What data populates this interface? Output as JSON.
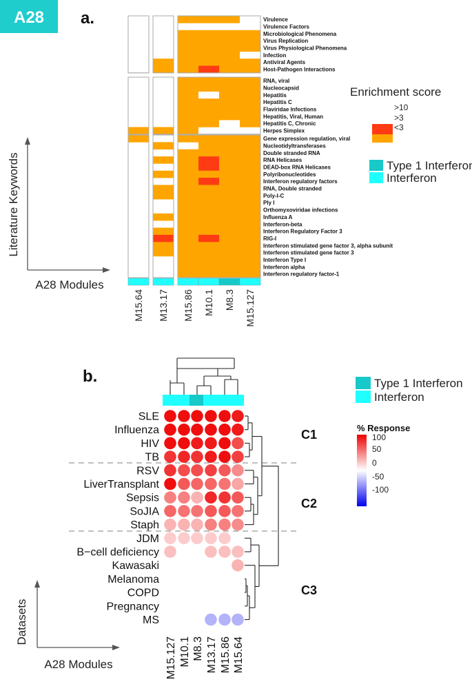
{
  "badge": "A28",
  "colors": {
    "badge": "#1fcdcd",
    "orange": "#ffa500",
    "red": "#ff3b14",
    "type1_ifn": "#17c9c9",
    "ifn": "#20ffff",
    "dot_pos": "#ee0000",
    "dot_neg": "#0000ee"
  },
  "panel_a": {
    "label": "a.",
    "y_title": "Literature Keywords",
    "x_title": "A28 Modules",
    "legend": {
      "title": "Enrichment score",
      "levels": [
        ">10",
        ">3",
        "<3"
      ],
      "module_types": [
        "Type 1 Interferon",
        "Interferon"
      ]
    },
    "chart_data": {
      "type": "heatmap",
      "modules": [
        "M15.64",
        "M13.17",
        "M15.86",
        "M10.1",
        "M8.3",
        "M15.127"
      ],
      "module_type": [
        "Interferon",
        "Interferon",
        "Interferon",
        "Interferon",
        "Type 1 Interferon",
        "Interferon"
      ],
      "score_levels": {
        "0": "<3",
        "1": ">3",
        "2": ">10"
      },
      "groups": [
        {
          "keywords": [
            "Virulence",
            "Virulence Factors",
            "Microbiological Phenomena",
            "Virus Replication",
            "Virus Physiological Phenomena",
            "Infection",
            "Antiviral Agents",
            "Host-Pathogen Interactions"
          ],
          "values": [
            [
              0,
              0,
              1,
              1,
              1,
              0
            ],
            [
              0,
              0,
              0,
              0,
              0,
              0
            ],
            [
              0,
              0,
              1,
              1,
              1,
              1
            ],
            [
              0,
              0,
              1,
              1,
              1,
              1
            ],
            [
              0,
              0,
              1,
              1,
              1,
              1
            ],
            [
              0,
              0,
              1,
              1,
              1,
              0
            ],
            [
              0,
              1,
              1,
              1,
              1,
              1
            ],
            [
              0,
              1,
              1,
              2,
              1,
              1
            ]
          ]
        },
        {
          "keywords": [
            "RNA, viral",
            "Nucleocapsid",
            "Hepatitis",
            "Hepatitis C",
            "Flaviridae Infections",
            "Hepatitis, Viral, Human",
            "Hepatitis C, Chronic",
            "Herpes Simplex"
          ],
          "values": [
            [
              0,
              0,
              1,
              1,
              1,
              1
            ],
            [
              0,
              0,
              1,
              1,
              1,
              1
            ],
            [
              0,
              0,
              1,
              0,
              1,
              1
            ],
            [
              0,
              0,
              1,
              1,
              1,
              1
            ],
            [
              0,
              0,
              1,
              1,
              1,
              1
            ],
            [
              0,
              0,
              1,
              1,
              1,
              1
            ],
            [
              0,
              0,
              1,
              1,
              0,
              1
            ],
            [
              1,
              1,
              1,
              0,
              0,
              0
            ]
          ]
        },
        {
          "keywords": [
            "Gene expression regulation, viral",
            "Nucleotidyltransferases",
            "Double stranded RNA",
            "RNA Helicases",
            "DEAD-box RNA Helicases",
            "Polyribonucleotides",
            "Interferon regulatory factors",
            "RNA, Double stranded",
            "Poly-I-C",
            "Ply I",
            "Orthomyxoviridae infections",
            "Influenza A",
            "Interferon-beta",
            "Interferon Regulatory Factor 3",
            "RIG-I",
            "Interferon stimulated gene factor 3, alpha subunit",
            "Interferon stimulated gene factor 3",
            "Interferon Type I",
            "Interferon alpha",
            "Interferon regulatory factor-1"
          ],
          "values": [
            [
              1,
              0,
              1,
              1,
              1,
              1
            ],
            [
              0,
              1,
              0,
              1,
              1,
              1
            ],
            [
              0,
              0,
              1,
              1,
              1,
              1
            ],
            [
              0,
              1,
              1,
              2,
              1,
              1
            ],
            [
              0,
              0,
              1,
              2,
              1,
              1
            ],
            [
              0,
              1,
              1,
              1,
              1,
              1
            ],
            [
              0,
              0,
              1,
              2,
              1,
              1
            ],
            [
              0,
              1,
              1,
              1,
              1,
              1
            ],
            [
              0,
              1,
              1,
              1,
              1,
              1
            ],
            [
              0,
              0,
              1,
              1,
              1,
              1
            ],
            [
              0,
              0,
              1,
              1,
              1,
              1
            ],
            [
              0,
              1,
              1,
              1,
              1,
              1
            ],
            [
              0,
              0,
              1,
              1,
              1,
              1
            ],
            [
              0,
              1,
              1,
              1,
              1,
              1
            ],
            [
              0,
              2,
              1,
              2,
              1,
              1
            ],
            [
              0,
              1,
              1,
              1,
              1,
              1
            ],
            [
              0,
              1,
              1,
              1,
              1,
              1
            ],
            [
              0,
              0,
              1,
              1,
              1,
              1
            ],
            [
              0,
              0,
              1,
              1,
              1,
              1
            ],
            [
              0,
              0,
              1,
              1,
              1,
              1
            ]
          ]
        }
      ]
    }
  },
  "panel_b": {
    "label": "b.",
    "y_title": "Datasets",
    "x_title": "A28 Modules",
    "legend": {
      "module_types": [
        "Type 1 Interferon",
        "Interferon"
      ],
      "response_title": "% Response",
      "ticks": [
        "100",
        "50",
        "0",
        "-50",
        "-100"
      ]
    },
    "cluster_labels": [
      "C1",
      "C2",
      "C3"
    ],
    "chart_data": {
      "type": "dot-heatmap",
      "modules": [
        "M15.127",
        "M10.1",
        "M8.3",
        "M13.17",
        "M15.86",
        "M15.64"
      ],
      "module_type": [
        "Interferon",
        "Interferon",
        "Type 1 Interferon",
        "Interferon",
        "Interferon",
        "Interferon"
      ],
      "value_range": [
        -100,
        100
      ],
      "datasets": [
        "SLE",
        "Influenza",
        "HIV",
        "TB",
        "RSV",
        "LiverTransplant",
        "Sepsis",
        "SoJIA",
        "Staph",
        "JDM",
        "B−cell deficiency",
        "Kawasaki",
        "Melanoma",
        "COPD",
        "Pregnancy",
        "MS"
      ],
      "clusters": {
        "C1": [
          0,
          3
        ],
        "C2": [
          4,
          8
        ],
        "C3": [
          9,
          15
        ]
      },
      "values": [
        [
          95,
          95,
          95,
          95,
          95,
          90
        ],
        [
          95,
          95,
          95,
          95,
          95,
          90
        ],
        [
          95,
          95,
          90,
          90,
          95,
          70
        ],
        [
          80,
          85,
          80,
          90,
          95,
          75
        ],
        [
          80,
          70,
          70,
          75,
          65,
          45
        ],
        [
          95,
          65,
          60,
          60,
          55,
          35
        ],
        [
          50,
          50,
          30,
          85,
          80,
          65
        ],
        [
          60,
          55,
          55,
          65,
          65,
          55
        ],
        [
          30,
          30,
          30,
          50,
          50,
          45
        ],
        [
          20,
          20,
          20,
          20,
          20,
          null
        ],
        [
          25,
          null,
          null,
          25,
          25,
          25
        ],
        [
          null,
          null,
          null,
          null,
          null,
          30
        ],
        [
          null,
          null,
          null,
          null,
          null,
          null
        ],
        [
          null,
          null,
          null,
          null,
          null,
          null
        ],
        [
          null,
          null,
          null,
          null,
          null,
          null
        ],
        [
          null,
          null,
          null,
          -30,
          -30,
          -30
        ]
      ]
    }
  }
}
